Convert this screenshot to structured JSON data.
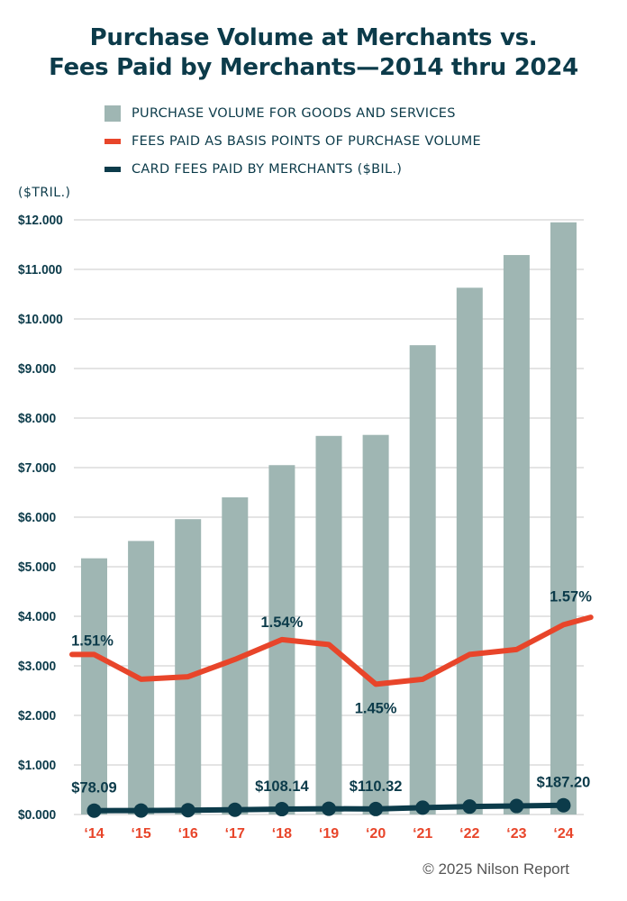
{
  "chart_data": {
    "type": "bar",
    "title": [
      "Purchase Volume at Merchants vs.",
      "Fees Paid by Merchants—2014 thru 2024"
    ],
    "ylabel": "($TRIL.)",
    "ylim": [
      0,
      12
    ],
    "yticks": [
      {
        "value": 0,
        "label": "$0.000"
      },
      {
        "value": 1,
        "label": "$1.000"
      },
      {
        "value": 2,
        "label": "$2.000"
      },
      {
        "value": 3,
        "label": "$3.000"
      },
      {
        "value": 4,
        "label": "$4.000"
      },
      {
        "value": 5,
        "label": "$5.000"
      },
      {
        "value": 6,
        "label": "$6.000"
      },
      {
        "value": 7,
        "label": "$7.000"
      },
      {
        "value": 8,
        "label": "$8.000"
      },
      {
        "value": 9,
        "label": "$9.000"
      },
      {
        "value": 10,
        "label": "$10.000"
      },
      {
        "value": 11,
        "label": "$11.000"
      },
      {
        "value": 12,
        "label": "$12.000"
      }
    ],
    "categories": [
      "‘14",
      "‘15",
      "‘16",
      "‘17",
      "‘18",
      "‘19",
      "‘20",
      "‘21",
      "‘22",
      "‘23",
      "‘24"
    ],
    "grid": true,
    "legend_position": "top",
    "series": [
      {
        "name": "PURCHASE VOLUME FOR GOODS AND SERVICES",
        "kind": "bar",
        "color": "#9fb6b3",
        "values": [
          5.17,
          5.52,
          5.96,
          6.4,
          7.05,
          7.64,
          7.66,
          9.47,
          10.63,
          11.29,
          11.95
        ]
      },
      {
        "name": "FEES PAID AS BASIS POINTS OF PURCHASE VOLUME",
        "kind": "line",
        "color": "#e8452a",
        "values": [
          1.51,
          1.46,
          1.465,
          1.5,
          1.54,
          1.53,
          1.45,
          1.46,
          1.51,
          1.52,
          1.57
        ],
        "axis_map": {
          "a": 2.63,
          "b": 1.45
        },
        "x_end_extension": 0.58,
        "y_end_value": 1.585,
        "labels": [
          {
            "index": 0,
            "text": "1.51%",
            "pos": "above"
          },
          {
            "index": 4,
            "text": "1.54%",
            "pos": "above"
          },
          {
            "index": 6,
            "text": "1.45%",
            "pos": "below"
          },
          {
            "index": 10,
            "text": "1.57%",
            "pos": "above-right"
          }
        ]
      },
      {
        "name": "CARD FEES PAID BY MERCHANTS ($BIL.)",
        "kind": "line",
        "color": "#0c3b4a",
        "values": [
          78.09,
          80.6,
          87.3,
          96.0,
          108.14,
          116.9,
          110.32,
          138.3,
          160.5,
          171.6,
          187.2
        ],
        "scale_per_trillion": 1000,
        "labels": [
          {
            "index": 0,
            "text": "$78.09"
          },
          {
            "index": 4,
            "text": "$108.14"
          },
          {
            "index": 6,
            "text": "$110.32"
          },
          {
            "index": 10,
            "text": "$187.20"
          }
        ]
      }
    ]
  },
  "footer": {
    "copyright": "© 2025 Nilson Report"
  }
}
